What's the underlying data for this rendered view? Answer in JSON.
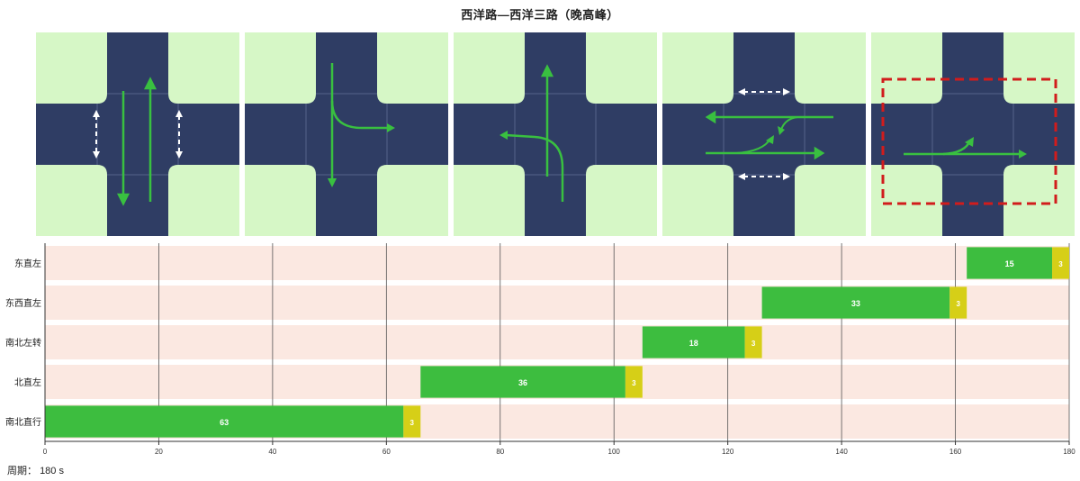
{
  "title": "西洋路—西洋三路（晚高峰）",
  "cycle_label": "周期：",
  "cycle_value": "180 s",
  "colors": {
    "road": "#2f3d64",
    "corner": "#d6f7c6",
    "arrow_green": "#39c040",
    "arrow_white": "#ffffff",
    "bar_green": "#3dbd3f",
    "bar_yellow": "#d6cf17",
    "row_bg": "#fbe8e1",
    "box_red": "#d11c1c"
  },
  "phases": [
    {
      "id": 1,
      "icons": [
        "north-south-straight-arrows",
        "pedestrian-crossing-arrows"
      ]
    },
    {
      "id": 2,
      "icons": [
        "south-left-turn-arrow"
      ]
    },
    {
      "id": 3,
      "icons": [
        "north-left-turn-arrow"
      ]
    },
    {
      "id": 4,
      "icons": [
        "east-west-straight-arrows",
        "east-west-left-turn-arrows",
        "pedestrian-crossing-arrows"
      ]
    },
    {
      "id": 5,
      "icons": [
        "east-straight-left-arrow",
        "highlight-box"
      ]
    }
  ],
  "chart_data": {
    "type": "gantt",
    "xlim": [
      0,
      180
    ],
    "xticks": [
      "0",
      "20",
      "40",
      "60",
      "80",
      "100",
      "120",
      "140",
      "160",
      "180"
    ],
    "rows": [
      {
        "label": "南北直行",
        "green_start": 0,
        "green": 63,
        "yellow": 3
      },
      {
        "label": "北直左",
        "green_start": 66,
        "green": 36,
        "yellow": 3
      },
      {
        "label": "南北左转",
        "green_start": 105,
        "green": 18,
        "yellow": 3
      },
      {
        "label": "东西直左",
        "green_start": 126,
        "green": 33,
        "yellow": 3
      },
      {
        "label": "东直左",
        "green_start": 162,
        "green": 15,
        "yellow": 3
      }
    ]
  }
}
